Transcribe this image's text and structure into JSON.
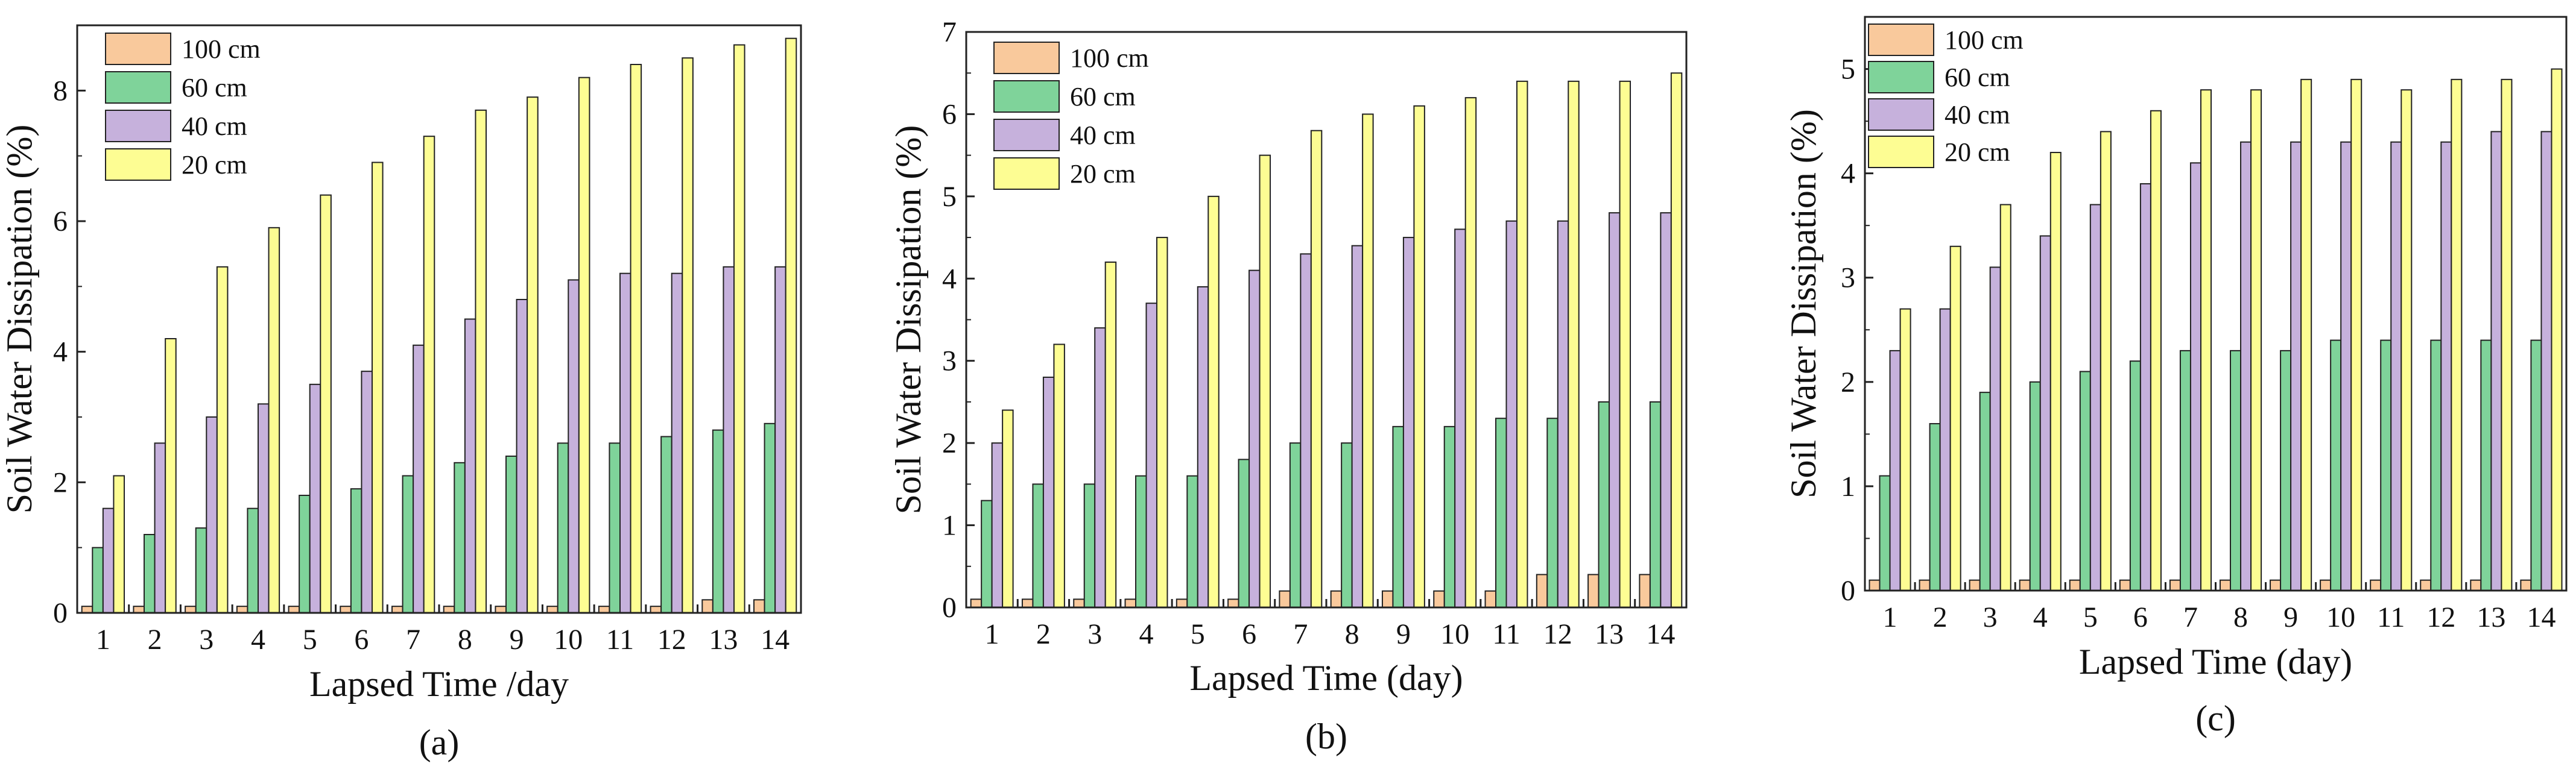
{
  "figure": {
    "colors": {
      "100 cm": "#f9c99c",
      "60 cm": "#7fd39a",
      "40 cm": "#c6b1dc",
      "20 cm": "#fdfd93",
      "stroke": "#222222"
    }
  },
  "chart_data": [
    {
      "type": "bar",
      "panel_label": "(a)",
      "xlabel": "Lapsed Time /day",
      "ylabel": "Soil Water Dissipation (%)",
      "ylim": [
        0,
        9
      ],
      "yticks": [
        0,
        2,
        4,
        6,
        8
      ],
      "legend_position": "top-left",
      "categories": [
        "1",
        "2",
        "3",
        "4",
        "5",
        "6",
        "7",
        "8",
        "9",
        "10",
        "11",
        "12",
        "13",
        "14"
      ],
      "series": [
        {
          "name": "100 cm",
          "values": [
            0.1,
            0.1,
            0.1,
            0.1,
            0.1,
            0.1,
            0.1,
            0.1,
            0.1,
            0.1,
            0.1,
            0.1,
            0.2,
            0.2
          ]
        },
        {
          "name": "60 cm",
          "values": [
            1.0,
            1.2,
            1.3,
            1.6,
            1.8,
            1.9,
            2.1,
            2.3,
            2.4,
            2.6,
            2.6,
            2.7,
            2.8,
            2.9
          ]
        },
        {
          "name": "40 cm",
          "values": [
            1.6,
            2.6,
            3.0,
            3.2,
            3.5,
            3.7,
            4.1,
            4.5,
            4.8,
            5.1,
            5.2,
            5.2,
            5.3,
            5.3
          ]
        },
        {
          "name": "20 cm",
          "values": [
            2.1,
            4.2,
            5.3,
            5.9,
            6.4,
            6.9,
            7.3,
            7.7,
            7.9,
            8.2,
            8.4,
            8.5,
            8.7,
            8.8
          ]
        }
      ]
    },
    {
      "type": "bar",
      "panel_label": "(b)",
      "xlabel": "Lapsed Time (day)",
      "ylabel": "Soil Water Dissipation (%)",
      "ylim": [
        0,
        7
      ],
      "yticks": [
        0,
        1,
        2,
        3,
        4,
        5,
        6,
        7
      ],
      "legend_position": "top-left",
      "categories": [
        "1",
        "2",
        "3",
        "4",
        "5",
        "6",
        "7",
        "8",
        "9",
        "10",
        "11",
        "12",
        "13",
        "14"
      ],
      "series": [
        {
          "name": "100 cm",
          "values": [
            0.1,
            0.1,
            0.1,
            0.1,
            0.1,
            0.1,
            0.2,
            0.2,
            0.2,
            0.2,
            0.2,
            0.4,
            0.4,
            0.4
          ]
        },
        {
          "name": "60 cm",
          "values": [
            1.3,
            1.5,
            1.5,
            1.6,
            1.6,
            1.8,
            2.0,
            2.0,
            2.2,
            2.2,
            2.3,
            2.3,
            2.5,
            2.5
          ]
        },
        {
          "name": "40 cm",
          "values": [
            2.0,
            2.8,
            3.4,
            3.7,
            3.9,
            4.1,
            4.3,
            4.4,
            4.5,
            4.6,
            4.7,
            4.7,
            4.8,
            4.8
          ]
        },
        {
          "name": "20 cm",
          "values": [
            2.4,
            3.2,
            4.2,
            4.5,
            5.0,
            5.5,
            5.8,
            6.0,
            6.1,
            6.2,
            6.4,
            6.4,
            6.4,
            6.5
          ]
        }
      ]
    },
    {
      "type": "bar",
      "panel_label": "(c)",
      "xlabel": "Lapsed Time (day)",
      "ylabel": "Soil Water Dissipation (%)",
      "ylim": [
        0,
        5.5
      ],
      "yticks": [
        0,
        1,
        2,
        3,
        4,
        5
      ],
      "legend_position": "top-left",
      "categories": [
        "1",
        "2",
        "3",
        "4",
        "5",
        "6",
        "7",
        "8",
        "9",
        "10",
        "11",
        "12",
        "13",
        "14"
      ],
      "series": [
        {
          "name": "100 cm",
          "values": [
            0.1,
            0.1,
            0.1,
            0.1,
            0.1,
            0.1,
            0.1,
            0.1,
            0.1,
            0.1,
            0.1,
            0.1,
            0.1,
            0.1
          ]
        },
        {
          "name": "60 cm",
          "values": [
            1.1,
            1.6,
            1.9,
            2.0,
            2.1,
            2.2,
            2.3,
            2.3,
            2.3,
            2.4,
            2.4,
            2.4,
            2.4,
            2.4
          ]
        },
        {
          "name": "40 cm",
          "values": [
            2.3,
            2.7,
            3.1,
            3.4,
            3.7,
            3.9,
            4.1,
            4.3,
            4.3,
            4.3,
            4.3,
            4.3,
            4.4,
            4.4
          ]
        },
        {
          "name": "20 cm",
          "values": [
            2.7,
            3.3,
            3.7,
            4.2,
            4.4,
            4.6,
            4.8,
            4.8,
            4.9,
            4.9,
            4.8,
            4.9,
            4.9,
            5.0
          ]
        }
      ]
    }
  ]
}
